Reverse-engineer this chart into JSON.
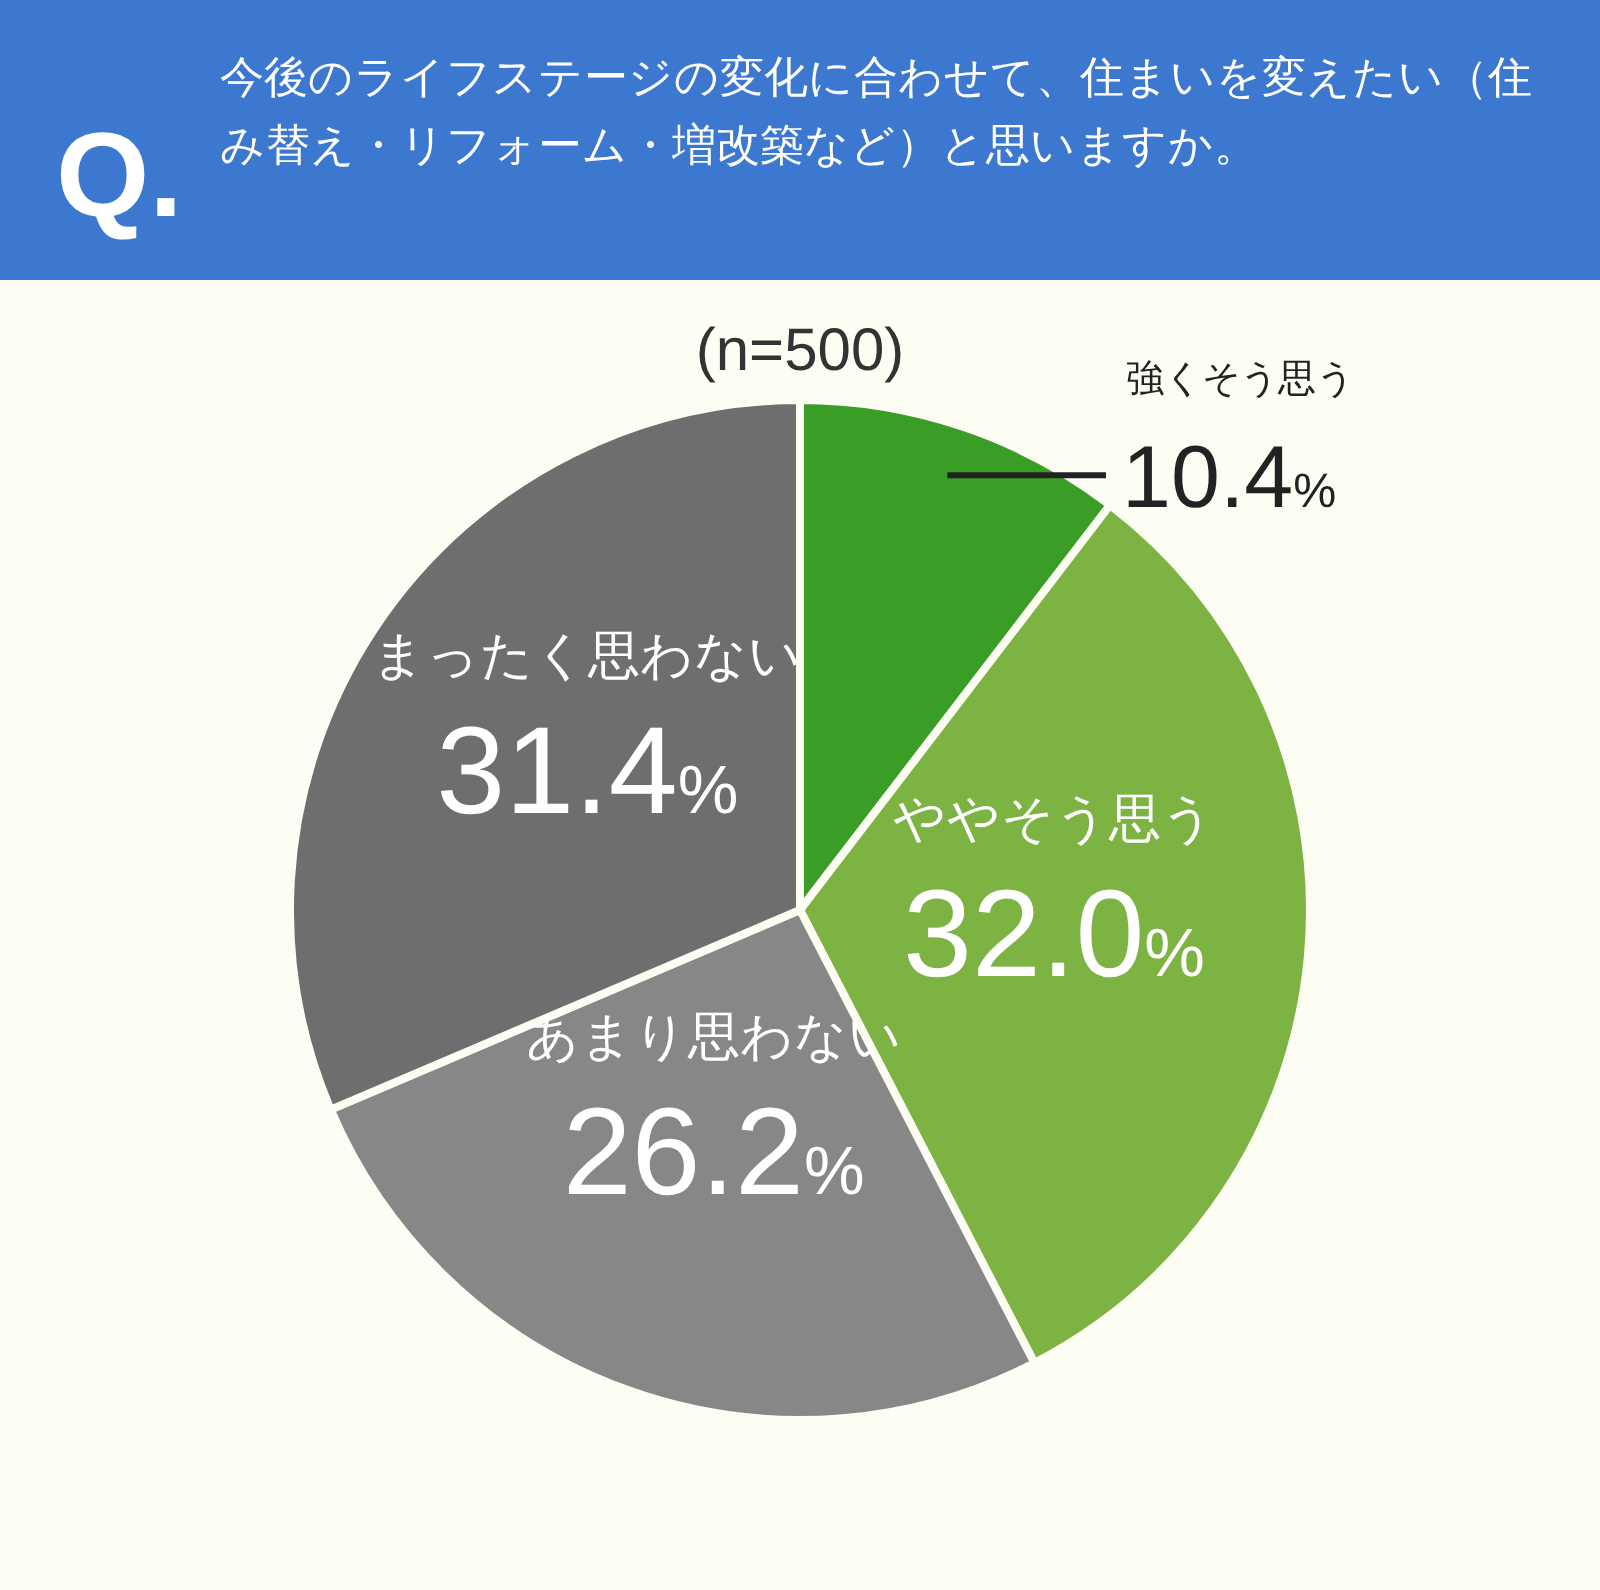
{
  "chart_data": {
    "type": "pie",
    "title": "今後のライフステージの変化に合わせて、住まいを変えたい（住み替え・リフォーム・増改築など）と思いますか。",
    "subtitle": "(n=500)",
    "annotations": [
      "Q."
    ],
    "categories": [
      "強くそう思う",
      "ややそう思う",
      "あまり思わない",
      "まったく思わない"
    ],
    "values": [
      10.4,
      32.0,
      26.2,
      31.4
    ],
    "value_labels": [
      "10.4%",
      "32.0%",
      "26.2%",
      "31.4%"
    ],
    "colors": [
      "#3a9e26",
      "#7db343",
      "#878787",
      "#6e6e6e"
    ]
  }
}
